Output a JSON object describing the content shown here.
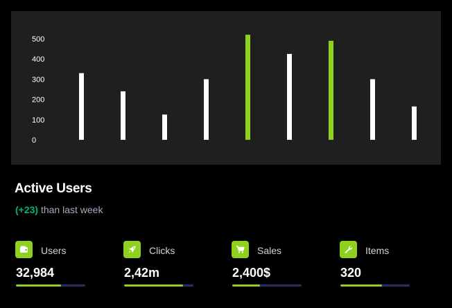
{
  "colors": {
    "background": "#000000",
    "panel": "#1f1f1f",
    "accent": "#8ed11f",
    "bar_default": "#ffffff",
    "positive": "#01b574",
    "muted_text": "#a0aec0",
    "track": "#2d2e5f"
  },
  "chart_data": {
    "type": "bar",
    "categories": [
      "",
      "",
      "",
      "",
      "",
      "",
      "",
      "",
      ""
    ],
    "values": [
      330,
      240,
      125,
      300,
      520,
      425,
      490,
      300,
      165
    ],
    "highlight": [
      false,
      false,
      false,
      false,
      true,
      false,
      true,
      false,
      false
    ],
    "yticks": [
      0,
      100,
      200,
      300,
      400,
      500
    ],
    "ylim": [
      0,
      500
    ],
    "grid": false,
    "title": "",
    "xlabel": "",
    "ylabel": ""
  },
  "card": {
    "title": "Active Users",
    "delta": "(+23)",
    "subtitle_rest": " than last week"
  },
  "stats": [
    {
      "icon": "wallet-icon",
      "label": "Users",
      "value": "32,984",
      "progress": 0.65
    },
    {
      "icon": "rocket-icon",
      "label": "Clicks",
      "value": "2,42m",
      "progress": 0.85
    },
    {
      "icon": "cart-icon",
      "label": "Sales",
      "value": "2,400$",
      "progress": 0.4
    },
    {
      "icon": "wrench-icon",
      "label": "Items",
      "value": "320",
      "progress": 0.6
    }
  ]
}
